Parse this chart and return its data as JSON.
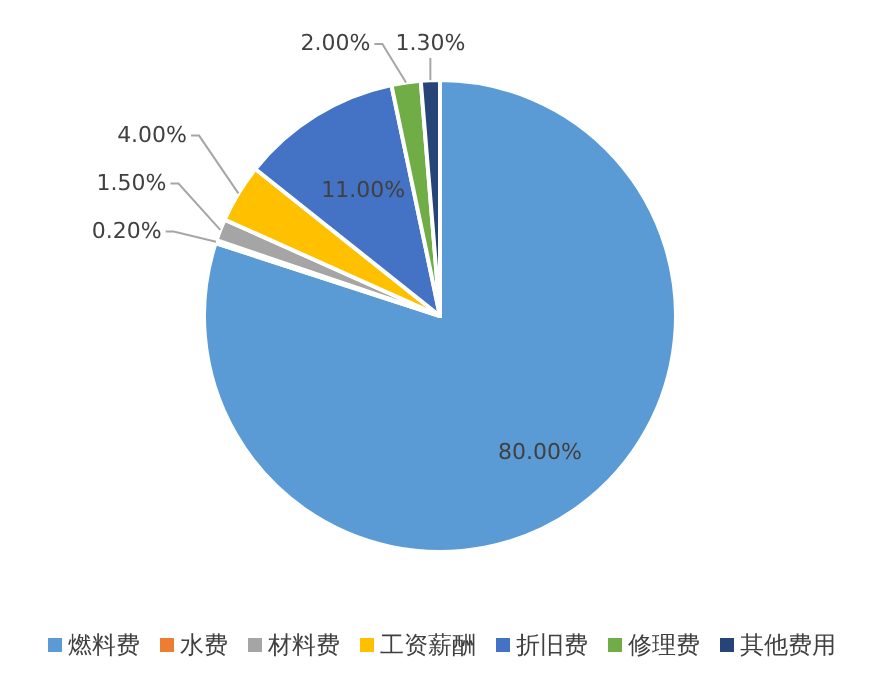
{
  "chart_data": {
    "type": "pie",
    "categories": [
      "燃料费",
      "水费",
      "材料费",
      "工资薪酬",
      "折旧费",
      "修理费",
      "其他费用"
    ],
    "values": [
      80,
      0.2,
      1.5,
      4,
      11,
      2,
      1.3
    ],
    "value_labels": [
      "80.00%",
      "0.20%",
      "1.50%",
      "4.00%",
      "11.00%",
      "2.00%",
      "1.30%"
    ],
    "colors": [
      "#5b9bd5",
      "#ed7d31",
      "#a5a5a5",
      "#ffc000",
      "#4472c4",
      "#70ad47",
      "#264478"
    ],
    "legend": "bottom"
  }
}
